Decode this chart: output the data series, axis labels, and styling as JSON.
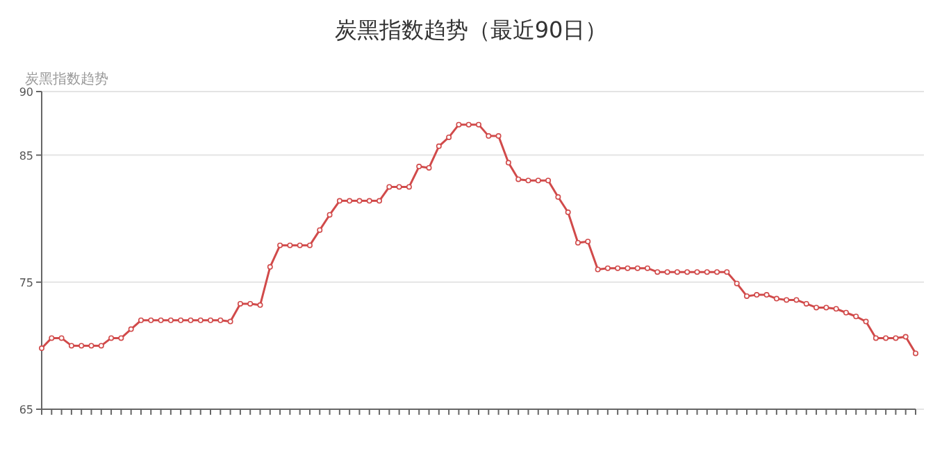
{
  "chart_data": {
    "type": "line",
    "title": "炭黑指数趋势（最近90日）",
    "ylabel": "炭黑指数趋势",
    "categories": [
      null,
      null,
      null,
      null,
      null,
      null,
      null,
      null,
      null,
      null,
      null,
      null,
      null,
      null,
      null,
      null,
      null,
      null,
      null,
      null,
      null,
      null,
      null,
      null,
      null,
      null,
      null,
      null,
      null,
      null,
      null,
      null,
      null,
      null,
      null,
      null,
      null,
      null,
      null,
      null,
      null,
      null,
      null,
      null,
      null,
      null,
      null,
      null,
      null,
      null,
      null,
      null,
      null,
      null,
      null,
      null,
      null,
      null,
      null,
      null,
      null,
      null,
      null,
      null,
      null,
      null,
      null,
      null,
      null,
      null,
      null,
      null,
      null,
      null,
      null,
      null,
      null,
      null,
      null,
      null,
      null,
      null,
      null,
      null,
      null,
      null,
      null,
      null,
      null
    ],
    "series": [
      {
        "color": "#d14a4a",
        "values": [
          69.8,
          70.6,
          70.6,
          70.0,
          70.0,
          70.0,
          70.0,
          70.6,
          70.6,
          71.3,
          72.0,
          72.0,
          72.0,
          72.0,
          72.0,
          72.0,
          72.0,
          72.0,
          72.0,
          71.9,
          73.3,
          73.3,
          73.2,
          76.2,
          77.9,
          77.9,
          77.9,
          77.9,
          79.1,
          80.3,
          81.4,
          81.4,
          81.4,
          81.4,
          81.4,
          82.5,
          82.5,
          82.5,
          84.1,
          84.0,
          85.7,
          86.4,
          87.4,
          87.4,
          87.4,
          86.5,
          86.5,
          84.4,
          83.1,
          83.0,
          83.0,
          83.0,
          81.7,
          80.5,
          78.1,
          78.2,
          76.0,
          76.1,
          76.1,
          76.1,
          76.1,
          76.1,
          75.8,
          75.8,
          75.8,
          75.8,
          75.8,
          75.8,
          75.8,
          75.8,
          74.9,
          73.9,
          74.0,
          74.0,
          73.7,
          73.6,
          73.6,
          73.3,
          73.0,
          73.0,
          72.9,
          72.6,
          72.3,
          71.9,
          70.6,
          70.6,
          70.6,
          70.7,
          69.4
        ]
      }
    ],
    "ylim": [
      65,
      90
    ],
    "yticks": [
      65,
      75,
      85,
      90
    ],
    "grid": "y",
    "marker": "circle",
    "line_style": "solid"
  }
}
